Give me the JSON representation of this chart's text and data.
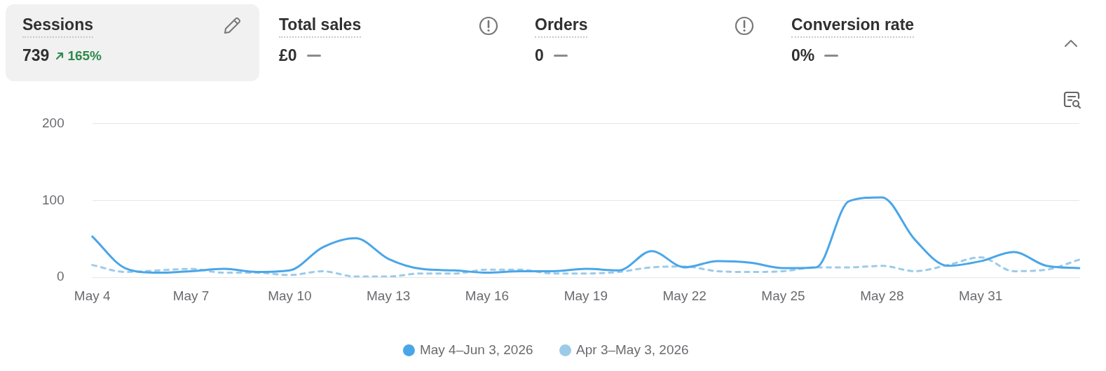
{
  "chart_data": [
    {
      "type": "other",
      "categories": [
        "Sessions",
        "Total sales",
        "Orders",
        "Conversion rate"
      ],
      "value_labels": [
        "739",
        "£0",
        "0",
        "0%"
      ],
      "annotations": [
        "165%"
      ]
    },
    {
      "type": "line",
      "categories": [
        "May 4",
        null,
        null,
        "May 7",
        null,
        null,
        "May 10",
        null,
        null,
        "May 13",
        null,
        null,
        "May 16",
        null,
        null,
        "May 19",
        null,
        null,
        "May 22",
        null,
        null,
        "May 25",
        null,
        null,
        "May 28",
        null,
        null,
        "May 31",
        null,
        null,
        null
      ],
      "series": [
        {
          "name": "May 4–Jun 3, 2026",
          "color": "#4aa6e8",
          "line_style": "solid",
          "values": [
            53,
            12,
            6,
            8,
            11,
            7,
            9,
            39,
            51,
            24,
            11,
            9,
            6,
            8,
            8,
            11,
            9,
            34,
            13,
            21,
            19,
            12,
            13,
            99,
            104,
            49,
            15,
            21,
            33,
            15,
            12
          ]
        },
        {
          "name": "Apr 3–May 3, 2026",
          "color": "#9ccbe9",
          "line_style": "dashed",
          "values": [
            16,
            7,
            9,
            11,
            6,
            6,
            3,
            8,
            1,
            1,
            5,
            5,
            10,
            10,
            5,
            5,
            7,
            13,
            14,
            8,
            7,
            8,
            13,
            13,
            15,
            8,
            16,
            26,
            8,
            10,
            23
          ]
        }
      ],
      "ylim": [
        0,
        200
      ],
      "yticks": [
        0,
        100,
        200
      ],
      "grid": "y",
      "legend": "bottom",
      "marker": "none"
    }
  ]
}
